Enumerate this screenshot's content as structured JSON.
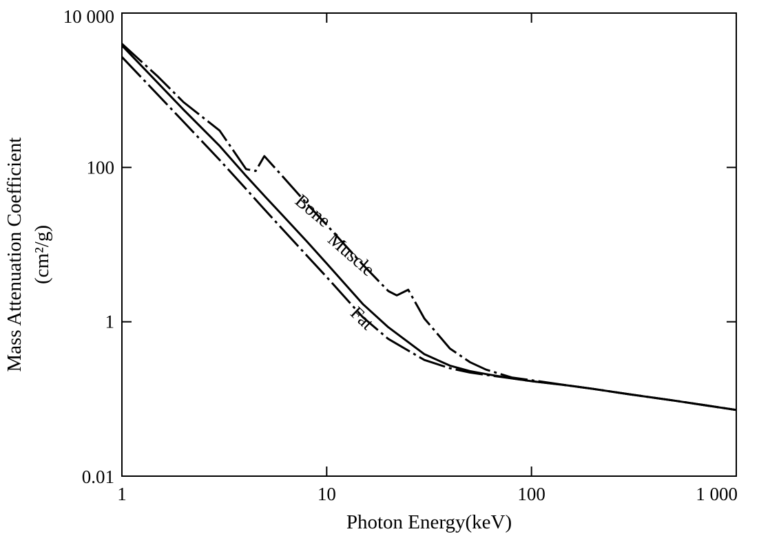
{
  "chart_data": {
    "type": "line",
    "xlabel": "Photon Energy(keV)",
    "ylabel": "Mass Attenuation Coefficient",
    "ylabel_unit": "(cm²/g)",
    "x_scale": "log",
    "y_scale": "log",
    "xlim": [
      1,
      1000
    ],
    "ylim": [
      0.01,
      10000
    ],
    "x_ticks": [
      {
        "value": 1,
        "label": "1"
      },
      {
        "value": 10,
        "label": "10"
      },
      {
        "value": 100,
        "label": "100"
      },
      {
        "value": 1000,
        "label": "1 000"
      }
    ],
    "y_ticks": [
      {
        "value": 0.01,
        "label": "0.01"
      },
      {
        "value": 1,
        "label": "1"
      },
      {
        "value": 100,
        "label": "100"
      },
      {
        "value": 10000,
        "label": "10 000"
      }
    ],
    "grid": false,
    "legend": "none",
    "series": [
      {
        "name": "Bone",
        "line_style": "dash-dot",
        "points": [
          [
            1,
            4000
          ],
          [
            1.5,
            1500
          ],
          [
            2,
            700
          ],
          [
            3,
            300
          ],
          [
            4.04,
            95
          ],
          [
            4.5,
            90
          ],
          [
            4.96,
            140
          ],
          [
            6,
            80
          ],
          [
            8,
            34
          ],
          [
            10,
            18
          ],
          [
            15,
            5.5
          ],
          [
            20,
            2.5
          ],
          [
            22,
            2.2
          ],
          [
            25,
            2.6
          ],
          [
            30,
            1.1
          ],
          [
            40,
            0.45
          ],
          [
            50,
            0.3
          ],
          [
            60,
            0.24
          ],
          [
            80,
            0.19
          ],
          [
            100,
            0.175
          ],
          [
            150,
            0.15
          ],
          [
            200,
            0.135
          ],
          [
            300,
            0.115
          ],
          [
            500,
            0.095
          ],
          [
            1000,
            0.072
          ]
        ]
      },
      {
        "name": "Muscle",
        "line_style": "solid",
        "points": [
          [
            1,
            3800
          ],
          [
            2,
            560
          ],
          [
            3,
            190
          ],
          [
            4,
            80
          ],
          [
            5,
            42
          ],
          [
            6,
            25
          ],
          [
            8,
            11
          ],
          [
            10,
            5.7
          ],
          [
            15,
            1.7
          ],
          [
            20,
            0.85
          ],
          [
            30,
            0.38
          ],
          [
            40,
            0.27
          ],
          [
            50,
            0.23
          ],
          [
            60,
            0.21
          ],
          [
            80,
            0.185
          ],
          [
            100,
            0.17
          ],
          [
            150,
            0.15
          ],
          [
            200,
            0.135
          ],
          [
            300,
            0.115
          ],
          [
            500,
            0.095
          ],
          [
            1000,
            0.072
          ]
        ]
      },
      {
        "name": "Fat",
        "line_style": "dash-dot",
        "points": [
          [
            1,
            2700
          ],
          [
            2,
            390
          ],
          [
            3,
            125
          ],
          [
            4,
            54
          ],
          [
            5,
            28
          ],
          [
            6,
            16.5
          ],
          [
            8,
            7.2
          ],
          [
            10,
            3.8
          ],
          [
            15,
            1.15
          ],
          [
            20,
            0.6
          ],
          [
            30,
            0.32
          ],
          [
            40,
            0.25
          ],
          [
            50,
            0.22
          ],
          [
            60,
            0.205
          ],
          [
            80,
            0.185
          ],
          [
            100,
            0.17
          ],
          [
            150,
            0.15
          ],
          [
            200,
            0.135
          ],
          [
            300,
            0.115
          ],
          [
            500,
            0.095
          ],
          [
            1000,
            0.072
          ]
        ]
      }
    ],
    "curve_labels": [
      {
        "text": "Bone",
        "x": 8.2,
        "y": 24,
        "angle_deg": 40
      },
      {
        "text": "Muscle",
        "x": 12.6,
        "y": 6.5,
        "angle_deg": 41
      },
      {
        "text": "Fat",
        "x": 14.2,
        "y": 0.98,
        "angle_deg": 44
      }
    ]
  }
}
